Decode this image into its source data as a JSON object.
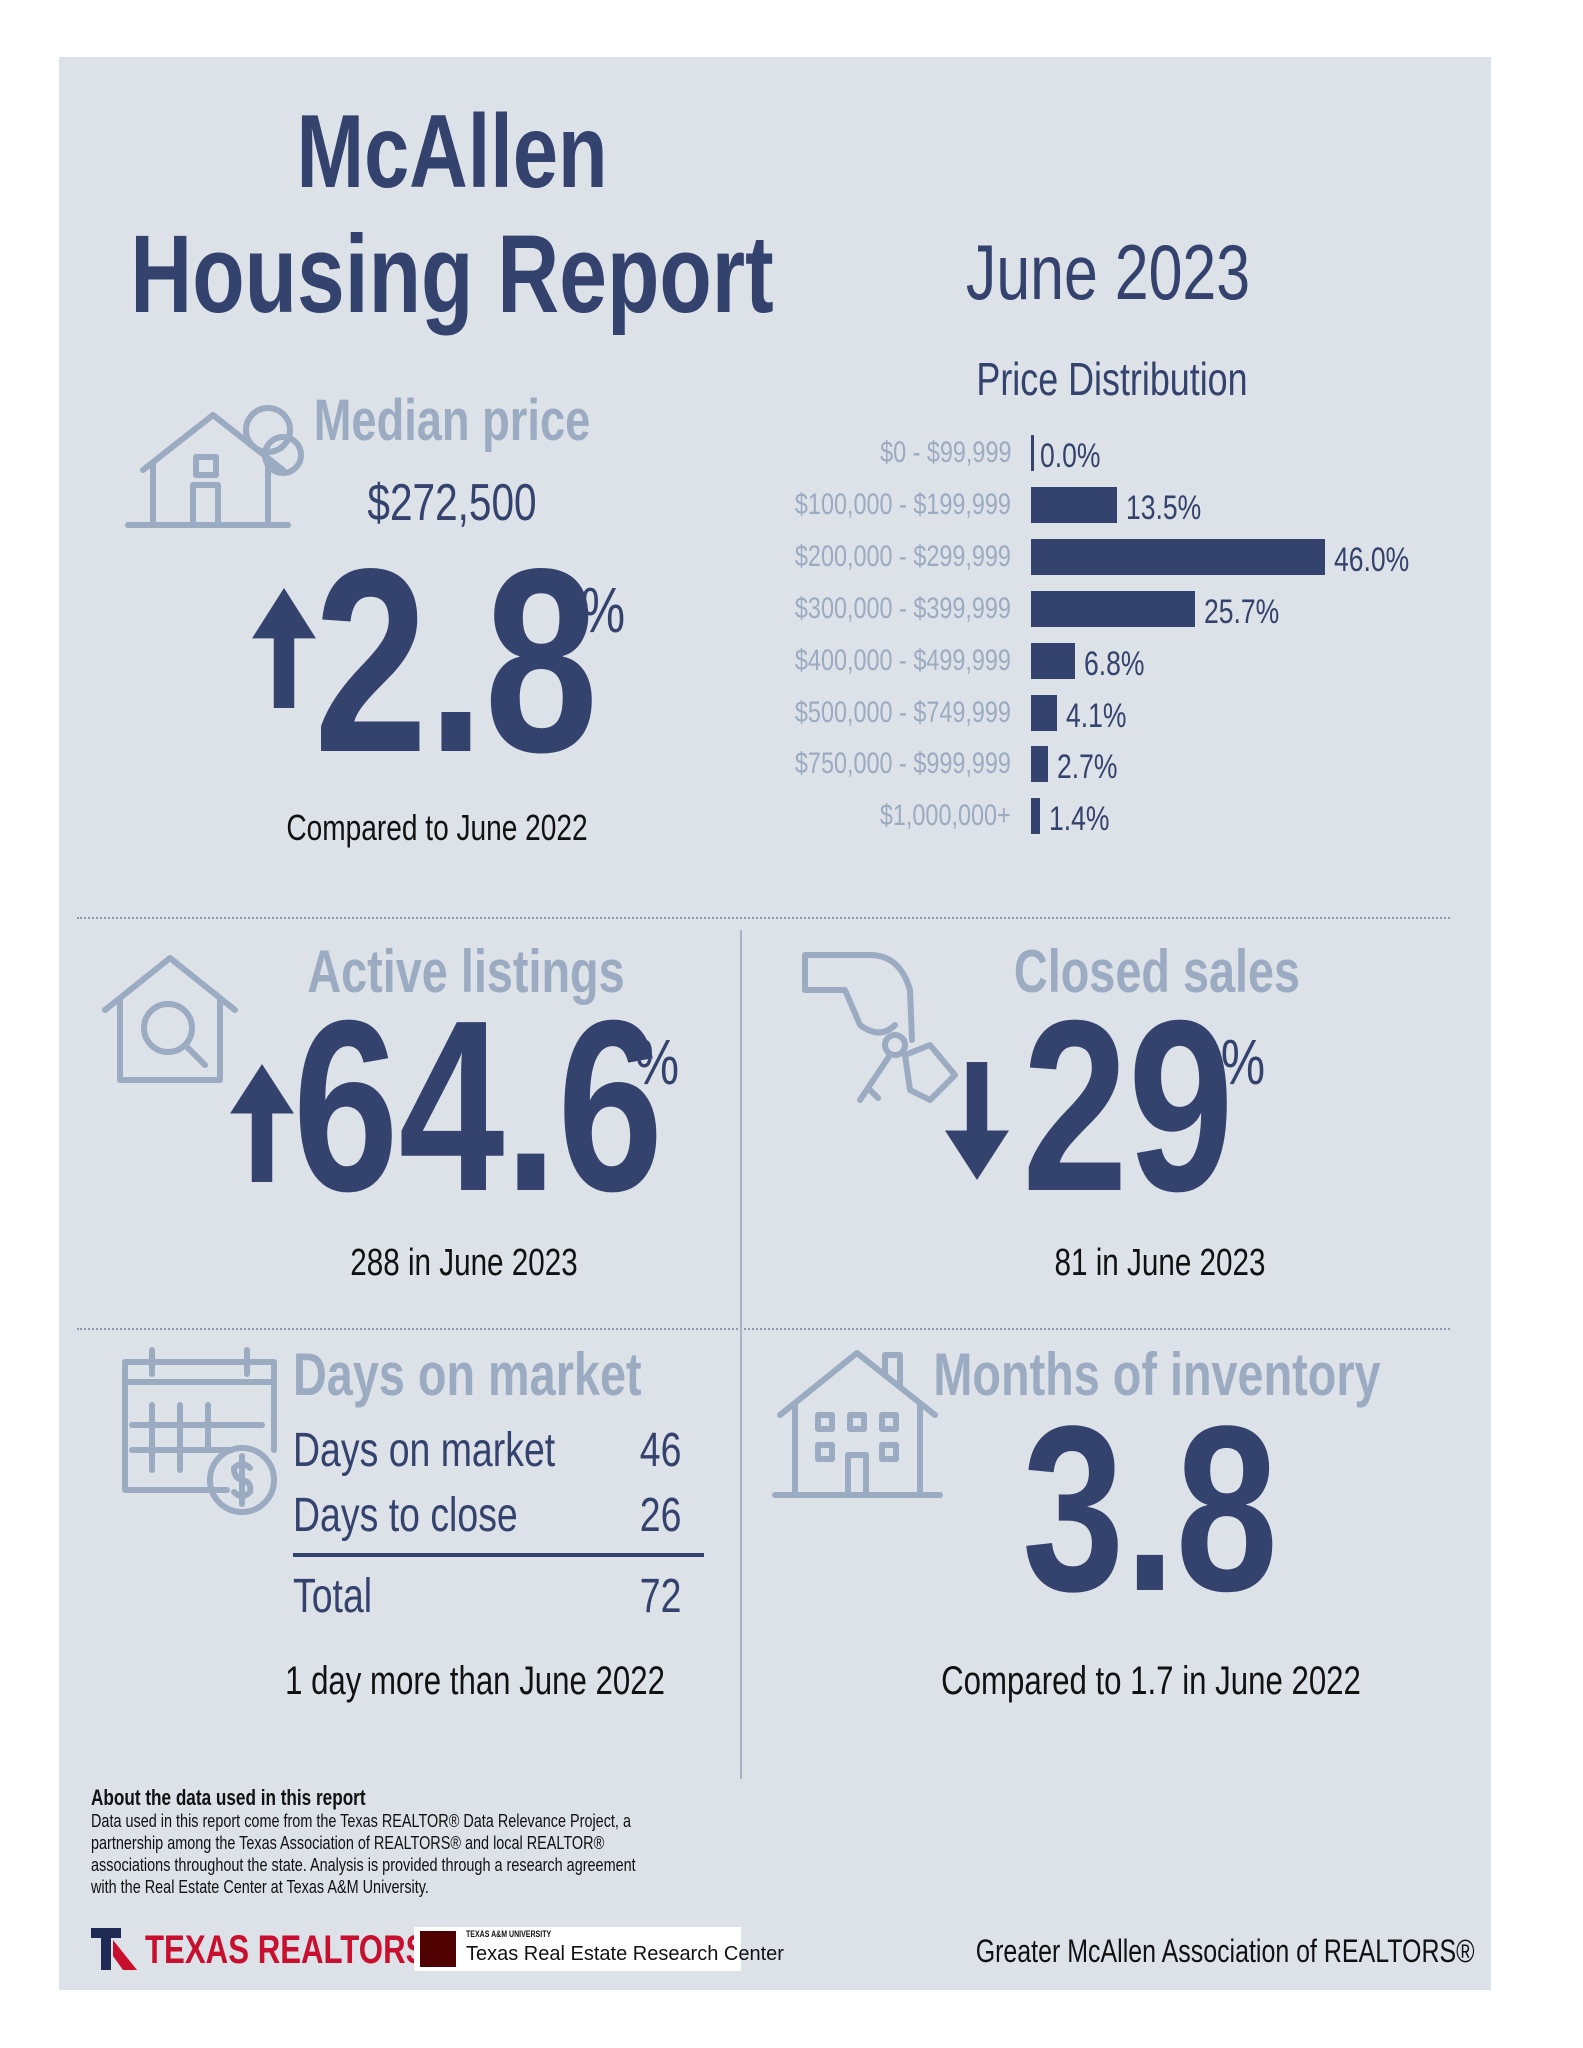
{
  "header": {
    "city": "McAllen",
    "title": "Housing Report",
    "period": "June 2023"
  },
  "median_price": {
    "label": "Median price",
    "value": "$272,500",
    "change": "2.8",
    "unit": "%",
    "direction": "up",
    "comparison": "Compared to June 2022"
  },
  "price_distribution": {
    "title": "Price Distribution",
    "categories": [
      "$0 - $99,999",
      "$100,000 - $199,999",
      "$200,000 - $299,999",
      "$300,000 - $399,999",
      "$400,000 - $499,999",
      "$500,000 - $749,999",
      "$750,000 - $999,999",
      "$1,000,000+"
    ],
    "values": [
      0.0,
      13.5,
      46.0,
      25.7,
      6.8,
      4.1,
      2.7,
      1.4
    ],
    "value_labels": [
      "0.0%",
      "13.5%",
      "46.0%",
      "25.7%",
      "6.8%",
      "4.1%",
      "2.7%",
      "1.4%"
    ],
    "color": "#34436e"
  },
  "active_listings": {
    "label": "Active listings",
    "change": "64.6",
    "unit": "%",
    "direction": "up",
    "note": "288 in June 2023"
  },
  "closed_sales": {
    "label": "Closed sales",
    "change": "29",
    "unit": "%",
    "direction": "down",
    "note": "81 in June 2023"
  },
  "days_on_market": {
    "label": "Days on market",
    "rows": [
      {
        "label": "Days on market",
        "value": "46"
      },
      {
        "label": "Days to close",
        "value": "26"
      }
    ],
    "total": {
      "label": "Total",
      "value": "72"
    },
    "note": "1 day more than June 2022"
  },
  "months_of_inventory": {
    "label": "Months of inventory",
    "value": "3.8",
    "note": "Compared to 1.7 in June 2022"
  },
  "about": {
    "title": "About the data used in this report",
    "lines": [
      "Data used in this report come from the Texas REALTOR® Data Relevance Project, a",
      "partnership among the Texas Association of REALTORS® and local REALTOR®",
      "associations throughout the state. Analysis is provided through a research agreement",
      "with the Real Estate Center at Texas A&M University."
    ]
  },
  "footer": {
    "logo_realtors": "TEXAS REALTORS",
    "logo_tamu_small": "TEXAS A&M UNIVERSITY",
    "logo_tamu": "Texas Real Estate Research Center",
    "association": "Greater McAllen Association of REALTORS®"
  }
}
